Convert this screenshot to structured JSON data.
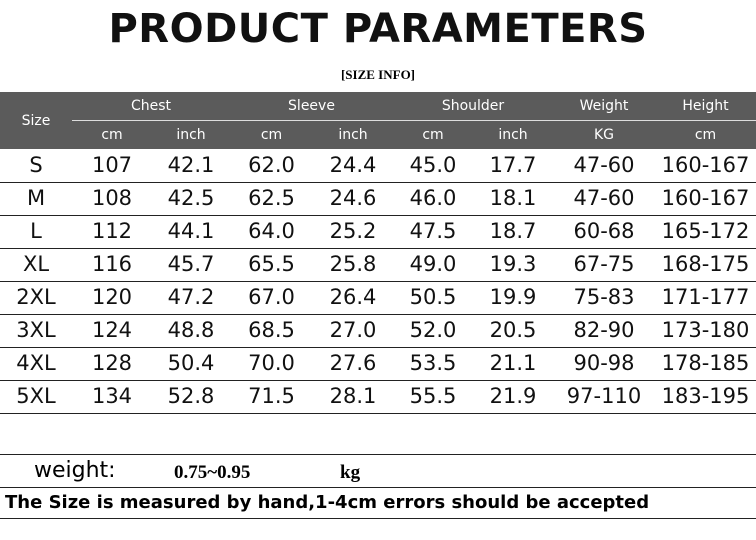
{
  "header": {
    "title": "PRODUCT PARAMETERS",
    "subtitle": "[SIZE INFO]"
  },
  "table": {
    "size_label": "Size",
    "groups": [
      "Chest",
      "Sleeve",
      "Shoulder",
      "Weight",
      "Height"
    ],
    "units": [
      "cm",
      "inch",
      "cm",
      "inch",
      "cm",
      "inch",
      "KG",
      "cm"
    ],
    "rows": [
      [
        "S",
        "107",
        "42.1",
        "62.0",
        "24.4",
        "45.0",
        "17.7",
        "47-60",
        "160-167"
      ],
      [
        "M",
        "108",
        "42.5",
        "62.5",
        "24.6",
        "46.0",
        "18.1",
        "47-60",
        "160-167"
      ],
      [
        "L",
        "112",
        "44.1",
        "64.0",
        "25.2",
        "47.5",
        "18.7",
        "60-68",
        "165-172"
      ],
      [
        "XL",
        "116",
        "45.7",
        "65.5",
        "25.8",
        "49.0",
        "19.3",
        "67-75",
        "168-175"
      ],
      [
        "2XL",
        "120",
        "47.2",
        "67.0",
        "26.4",
        "50.5",
        "19.9",
        "75-83",
        "171-177"
      ],
      [
        "3XL",
        "124",
        "48.8",
        "68.5",
        "27.0",
        "52.0",
        "20.5",
        "82-90",
        "173-180"
      ],
      [
        "4XL",
        "128",
        "50.4",
        "70.0",
        "27.6",
        "53.5",
        "21.1",
        "90-98",
        "178-185"
      ],
      [
        "5XL",
        "134",
        "52.8",
        "71.5",
        "28.1",
        "55.5",
        "21.9",
        "97-110",
        "183-195"
      ]
    ]
  },
  "footer": {
    "weight_label": "weight:",
    "weight_value": "0.75~0.95",
    "weight_unit": "kg",
    "note": "The Size is measured by hand,1-4cm errors should be accepted"
  }
}
